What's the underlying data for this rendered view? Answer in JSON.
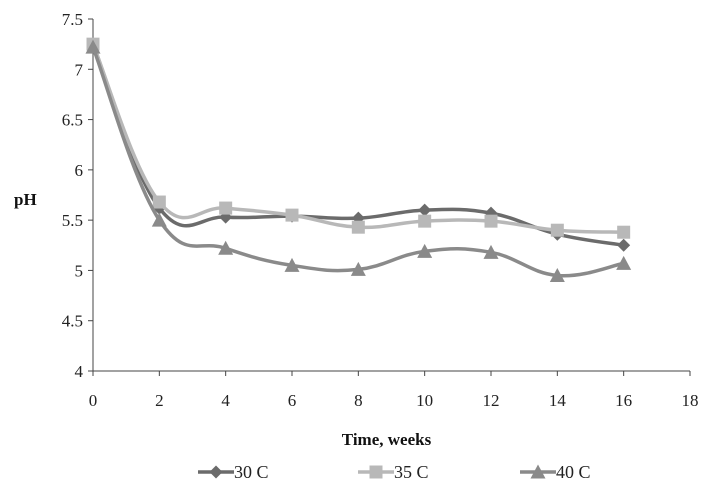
{
  "chart_data": {
    "type": "line",
    "xlabel": "Time, weeks",
    "ylabel": "pH",
    "xlim": [
      0,
      18
    ],
    "ylim": [
      4,
      7.5
    ],
    "x_ticks": [
      "0",
      "2",
      "4",
      "6",
      "8",
      "10",
      "12",
      "14",
      "16",
      "18"
    ],
    "y_ticks": [
      "4",
      "4.5",
      "5",
      "5.5",
      "6",
      "6.5",
      "7",
      "7.5"
    ],
    "grid": false,
    "smoothed": true,
    "legend_position": "bottom",
    "x": [
      0,
      2,
      4,
      6,
      8,
      10,
      12,
      14,
      16
    ],
    "series": [
      {
        "name": "30 C",
        "marker": "diamond",
        "color": "#6b6b6b",
        "values": [
          7.25,
          5.62,
          5.53,
          5.54,
          5.52,
          5.6,
          5.57,
          5.36,
          5.25
        ]
      },
      {
        "name": "35 C",
        "marker": "square",
        "color": "#b8b8b8",
        "values": [
          7.25,
          5.68,
          5.62,
          5.55,
          5.43,
          5.49,
          5.49,
          5.4,
          5.38
        ]
      },
      {
        "name": "40 C",
        "marker": "triangle",
        "color": "#8a8a8a",
        "values": [
          7.22,
          5.5,
          5.22,
          5.05,
          5.01,
          5.19,
          5.18,
          4.95,
          5.07
        ]
      }
    ]
  }
}
